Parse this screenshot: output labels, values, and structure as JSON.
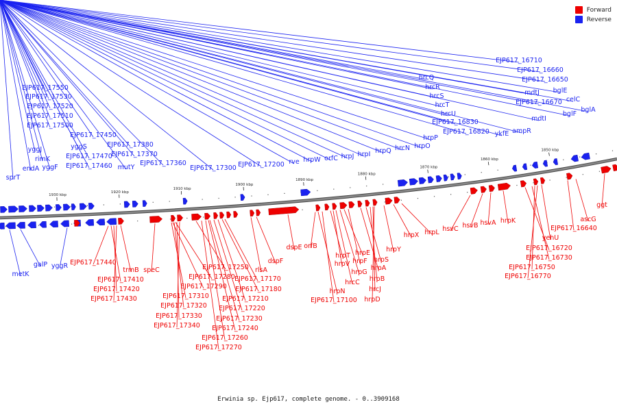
{
  "colors": {
    "forward": "#ee0000",
    "reverse": "#1a22f0",
    "axis": "#8a8a8a"
  },
  "legend": [
    {
      "label": "Forward",
      "color": "#ee0000"
    },
    {
      "label": "Reverse",
      "color": "#1a22f0"
    }
  ],
  "caption": "Erwinia sp. Ejp617, complete genome. - 0..3909168",
  "ticks": [
    "1930 kbp",
    "1920 kbp",
    "1910 kbp",
    "1900 kbp",
    "1890 kbp",
    "1880 kbp",
    "1870 kbp",
    "1860 kbp",
    "1850 kbp"
  ],
  "genes_reverse_upper": [
    "EJP617_17550",
    "EJP617_17530",
    "EJP617_17520",
    "EJP617_17510",
    "EJP617_17500",
    "EJP617_17450",
    "EJP617_17470",
    "EJP617_17460",
    "yggS",
    "yggJ",
    "rimK",
    "endA",
    "yggF",
    "sprT",
    "EJP617_17380",
    "EJP617_17370",
    "mutY",
    "EJP617_17360",
    "EJP617_17300",
    "EJP617_17200",
    "rve",
    "hrpW",
    "orfC",
    "hrpJ",
    "hrpI",
    "hrpQ",
    "hrcN",
    "hrpO",
    "hrcQ",
    "hrcR",
    "hrcS",
    "hrcT",
    "hrcU",
    "EJP617_16830",
    "hrpP",
    "EJP617_16820",
    "ykfE",
    "ampR",
    "EJP617_16710",
    "EJP617_16660",
    "EJP617_16650",
    "bglE",
    "mdtJ",
    "EJP617_16670",
    "celC",
    "mdtI",
    "bglF",
    "bglA"
  ],
  "genes_reverse_lower": [
    "metK",
    "galP",
    "yggR"
  ],
  "genes_forward_lower": [
    "EJP617_17440",
    "trmB",
    "EJP617_17410",
    "EJP617_17420",
    "EJP617_17430",
    "speC",
    "EJP617_17250",
    "EJP617_17280",
    "EJP617_17290",
    "EJP617_17310",
    "EJP617_17320",
    "EJP617_17330",
    "EJP617_17340",
    "EJP617_17260",
    "EJP617_17270",
    "EJP617_17240",
    "EJP617_17230",
    "EJP617_17220",
    "EJP617_17210",
    "EJP617_17180",
    "EJP617_17170",
    "rlsA",
    "dspF",
    "dspE",
    "orfB",
    "hrpN",
    "EJP617_17100",
    "hrcC",
    "hrpT",
    "hrpV",
    "hrpG",
    "hrpE",
    "hrpF",
    "hrpA",
    "hrpS",
    "hrpB",
    "hrcJ",
    "hrpD",
    "hrpY",
    "hrpX",
    "hrpL",
    "hsvC",
    "hsvB",
    "hsvA",
    "hrpK",
    "EJP617_16720",
    "EJP617_16730",
    "EJP617_16750",
    "EJP617_16770",
    "yehU",
    "EJP617_16640",
    "ascG",
    "ggt"
  ]
}
